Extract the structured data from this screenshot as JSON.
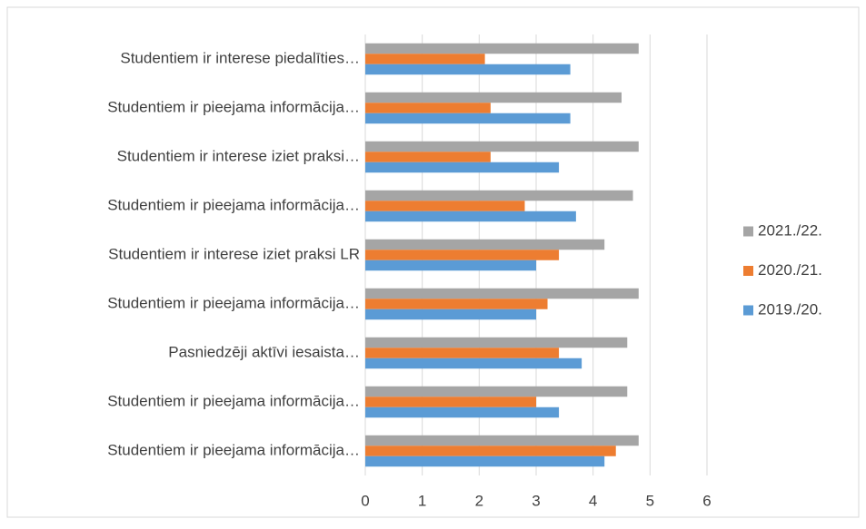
{
  "chart_data": {
    "type": "bar",
    "orientation": "horizontal",
    "categories": [
      "Studentiem ir interese piedalīties…",
      "Studentiem ir pieejama informācija…",
      "Studentiem ir interese iziet praksi…",
      "Studentiem ir pieejama informācija…",
      "Studentiem ir interese iziet praksi LR",
      "Studentiem ir pieejama informācija…",
      "Pasniedzēji aktīvi iesaista…",
      "Studentiem ir pieejama informācija…",
      "Studentiem ir pieejama informācija…"
    ],
    "series": [
      {
        "name": "2021./22.",
        "color": "#a5a5a5",
        "values": [
          4.8,
          4.5,
          4.8,
          4.7,
          4.2,
          4.8,
          4.6,
          4.6,
          4.8
        ]
      },
      {
        "name": "2020./21.",
        "color": "#ed7d31",
        "values": [
          2.1,
          2.2,
          2.2,
          2.8,
          3.4,
          3.2,
          3.4,
          3.0,
          4.4
        ]
      },
      {
        "name": "2019./20.",
        "color": "#5b9bd5",
        "values": [
          3.6,
          3.6,
          3.4,
          3.7,
          3.0,
          3.0,
          3.8,
          3.4,
          4.2
        ]
      }
    ],
    "xlim": [
      0,
      6
    ],
    "xticks": [
      0,
      1,
      2,
      3,
      4,
      5,
      6
    ],
    "grid": true,
    "legend": "right"
  }
}
